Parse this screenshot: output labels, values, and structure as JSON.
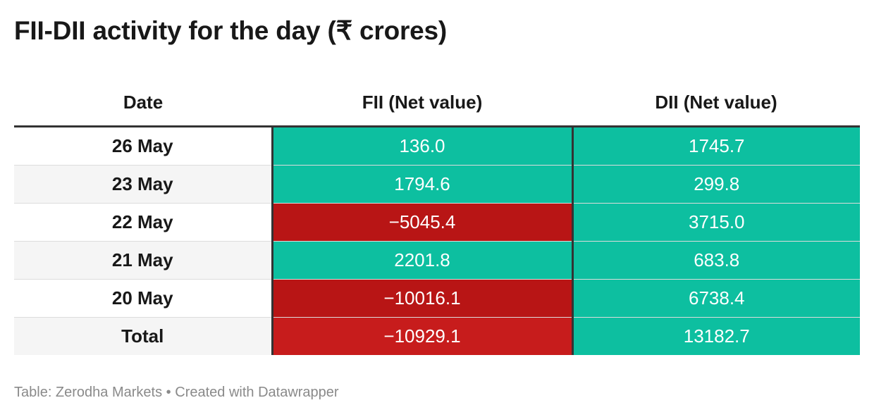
{
  "title": "FII-DII activity for the day (₹ crores)",
  "footer": {
    "source": "Table: Zerodha Markets",
    "separator": "•",
    "credit": "Created with Datawrapper"
  },
  "colors": {
    "positive": "#0dbfa0",
    "negative": "#b81515",
    "negative_total": "#c71c1c"
  },
  "chart_data": {
    "type": "table",
    "title": "FII-DII activity for the day (₹ crores)",
    "columns": [
      "Date",
      "FII (Net value)",
      "DII (Net value)"
    ],
    "rows": [
      {
        "date": "26 May",
        "fii": "136.0",
        "dii": "1745.7"
      },
      {
        "date": "23 May",
        "fii": "1794.6",
        "dii": "299.8"
      },
      {
        "date": "22 May",
        "fii": "−5045.4",
        "dii": "3715.0"
      },
      {
        "date": "21 May",
        "fii": "2201.8",
        "dii": "683.8"
      },
      {
        "date": "20 May",
        "fii": "−10016.1",
        "dii": "6738.4"
      },
      {
        "date": "Total",
        "fii": "−10929.1",
        "dii": "13182.7"
      }
    ]
  }
}
